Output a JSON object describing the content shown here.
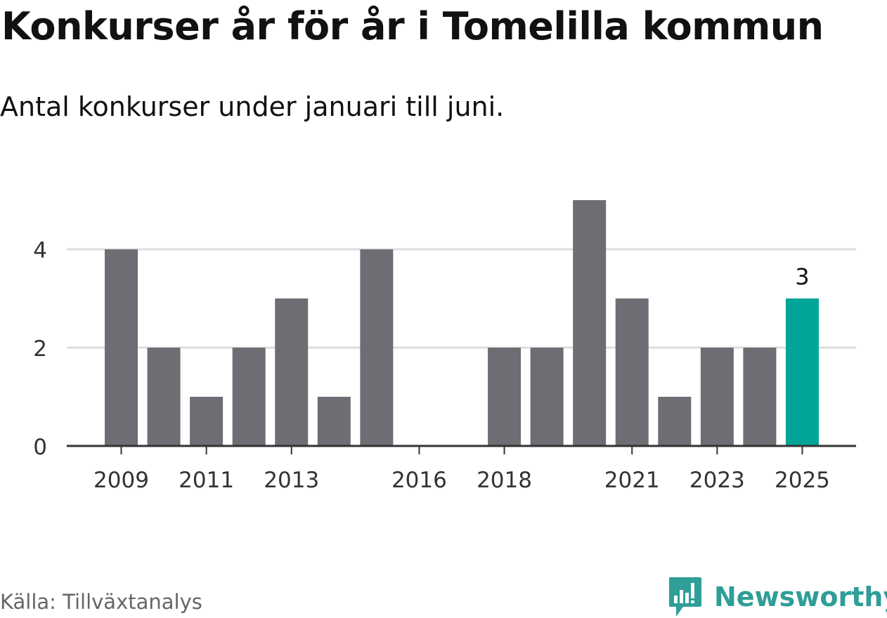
{
  "title": "Konkurser år för år i Tomelilla kommun",
  "subtitle": "Antal konkurser under januari till juni.",
  "source": "Källa: Tillväxtanalys",
  "brand": {
    "name": "Newsworthy",
    "logo_icon": "bar-chart-speech-bubble-icon"
  },
  "colors": {
    "bar": "#6e6d73",
    "highlight": "#00a598",
    "grid": "#dddddd",
    "axis": "#333333",
    "brand": "#2e9e97"
  },
  "chart_data": {
    "type": "bar",
    "categories": [
      "2009",
      "2010",
      "2011",
      "2012",
      "2013",
      "2014",
      "2015",
      "2016",
      "2017",
      "2018",
      "2019",
      "2020",
      "2021",
      "2022",
      "2023",
      "2024",
      "2025"
    ],
    "values": [
      4,
      2,
      1,
      2,
      3,
      1,
      4,
      0,
      0,
      2,
      2,
      5,
      3,
      1,
      2,
      2,
      3
    ],
    "x_tick_labels": [
      "2009",
      "2011",
      "2013",
      "2016",
      "2018",
      "2021",
      "2023",
      "2025"
    ],
    "y_ticks": [
      0,
      2,
      4
    ],
    "ylim": [
      0,
      5
    ],
    "grid": true,
    "highlight": {
      "category": "2025",
      "label": "3"
    },
    "xlabel": "",
    "ylabel": ""
  }
}
